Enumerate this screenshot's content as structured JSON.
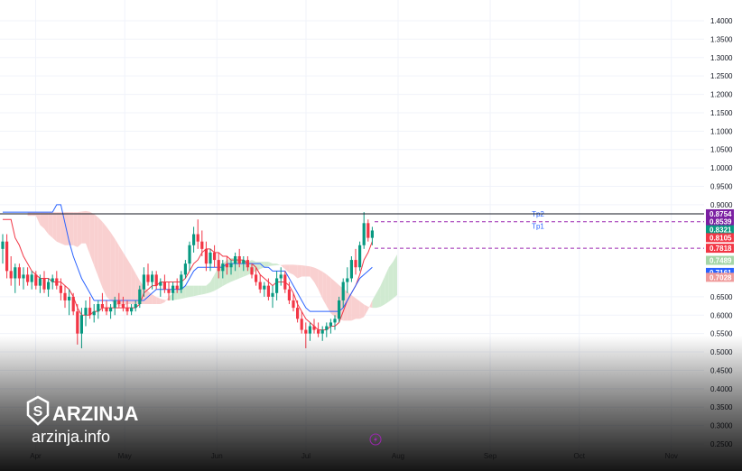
{
  "chart_data": {
    "type": "candlestick",
    "y_axis": {
      "position": "right",
      "ticks": [
        "1.4000",
        "1.3500",
        "1.3000",
        "1.2500",
        "1.2000",
        "1.1500",
        "1.1000",
        "1.0500",
        "1.0000",
        "0.9500",
        "0.9000",
        "0.6500",
        "0.6000",
        "0.5500",
        "0.5000",
        "0.4500",
        "0.4000",
        "0.3500",
        "0.3000",
        "0.2500"
      ],
      "ylim": [
        0.245,
        1.42
      ],
      "scale": "linear"
    },
    "x_axis": {
      "ticks": [
        "Apr",
        "May",
        "Jun",
        "Jul",
        "Aug",
        "Sep",
        "Oct",
        "Nov"
      ]
    },
    "x_range_dates": [
      "2024-03-20",
      "2024-11-12"
    ],
    "price_badges": [
      {
        "value": "0.8754",
        "color": "#7b1fa2"
      },
      {
        "value": "0.8539",
        "color": "#7b1fa2"
      },
      {
        "value": "0.8321",
        "color": "#089981"
      },
      {
        "value": "0.8105",
        "color": "#f23645"
      },
      {
        "value": "0.7818",
        "color": "#f23645"
      },
      {
        "value": "0.7489",
        "color": "#a5d6a7"
      },
      {
        "value": "0.7161",
        "color": "#2962ff"
      },
      {
        "value": "0.7028",
        "color": "#ef9a9a"
      }
    ],
    "levels": [
      {
        "label": "Tp2",
        "value": 0.8754,
        "style": "dashed",
        "color": "#9c27b0"
      },
      {
        "label": "Tp1",
        "value": 0.8539,
        "style": "dashed",
        "color": "#9c27b0"
      },
      {
        "label": "",
        "value": 0.7818,
        "style": "dashed",
        "color": "#9c27b0"
      },
      {
        "label": "",
        "value": 0.8754,
        "style": "solid",
        "color": "#131722"
      }
    ],
    "candles": [
      [
        0.78,
        0.82,
        0.74,
        0.8
      ],
      [
        0.8,
        0.82,
        0.7,
        0.72
      ],
      [
        0.72,
        0.76,
        0.68,
        0.7
      ],
      [
        0.7,
        0.74,
        0.66,
        0.73
      ],
      [
        0.73,
        0.74,
        0.68,
        0.7
      ],
      [
        0.7,
        0.73,
        0.67,
        0.71
      ],
      [
        0.71,
        0.73,
        0.68,
        0.69
      ],
      [
        0.69,
        0.72,
        0.67,
        0.71
      ],
      [
        0.71,
        0.72,
        0.67,
        0.68
      ],
      [
        0.68,
        0.71,
        0.66,
        0.7
      ],
      [
        0.7,
        0.72,
        0.66,
        0.67
      ],
      [
        0.67,
        0.7,
        0.65,
        0.69
      ],
      [
        0.69,
        0.71,
        0.67,
        0.7
      ],
      [
        0.7,
        0.72,
        0.67,
        0.68
      ],
      [
        0.68,
        0.7,
        0.64,
        0.66
      ],
      [
        0.66,
        0.68,
        0.62,
        0.64
      ],
      [
        0.64,
        0.67,
        0.6,
        0.65
      ],
      [
        0.65,
        0.66,
        0.6,
        0.61
      ],
      [
        0.61,
        0.63,
        0.52,
        0.55
      ],
      [
        0.55,
        0.62,
        0.51,
        0.6
      ],
      [
        0.6,
        0.64,
        0.57,
        0.62
      ],
      [
        0.62,
        0.65,
        0.59,
        0.6
      ],
      [
        0.6,
        0.63,
        0.58,
        0.61
      ],
      [
        0.61,
        0.64,
        0.59,
        0.63
      ],
      [
        0.63,
        0.66,
        0.61,
        0.62
      ],
      [
        0.62,
        0.64,
        0.6,
        0.61
      ],
      [
        0.61,
        0.63,
        0.59,
        0.62
      ],
      [
        0.62,
        0.65,
        0.6,
        0.64
      ],
      [
        0.64,
        0.66,
        0.62,
        0.63
      ],
      [
        0.63,
        0.65,
        0.61,
        0.62
      ],
      [
        0.62,
        0.64,
        0.6,
        0.61
      ],
      [
        0.61,
        0.63,
        0.6,
        0.62
      ],
      [
        0.62,
        0.64,
        0.61,
        0.63
      ],
      [
        0.63,
        0.68,
        0.62,
        0.67
      ],
      [
        0.67,
        0.73,
        0.65,
        0.71
      ],
      [
        0.71,
        0.74,
        0.68,
        0.69
      ],
      [
        0.69,
        0.72,
        0.67,
        0.71
      ],
      [
        0.71,
        0.72,
        0.67,
        0.68
      ],
      [
        0.68,
        0.7,
        0.65,
        0.69
      ],
      [
        0.69,
        0.71,
        0.66,
        0.67
      ],
      [
        0.67,
        0.69,
        0.64,
        0.66
      ],
      [
        0.66,
        0.69,
        0.64,
        0.68
      ],
      [
        0.68,
        0.7,
        0.66,
        0.67
      ],
      [
        0.67,
        0.72,
        0.66,
        0.71
      ],
      [
        0.71,
        0.75,
        0.7,
        0.74
      ],
      [
        0.74,
        0.8,
        0.72,
        0.79
      ],
      [
        0.79,
        0.84,
        0.77,
        0.82
      ],
      [
        0.82,
        0.86,
        0.78,
        0.8
      ],
      [
        0.8,
        0.83,
        0.76,
        0.78
      ],
      [
        0.78,
        0.8,
        0.72,
        0.74
      ],
      [
        0.74,
        0.78,
        0.72,
        0.77
      ],
      [
        0.77,
        0.79,
        0.73,
        0.75
      ],
      [
        0.75,
        0.77,
        0.7,
        0.72
      ],
      [
        0.72,
        0.75,
        0.7,
        0.74
      ],
      [
        0.74,
        0.76,
        0.71,
        0.73
      ],
      [
        0.73,
        0.75,
        0.71,
        0.74
      ],
      [
        0.74,
        0.77,
        0.72,
        0.76
      ],
      [
        0.76,
        0.78,
        0.73,
        0.74
      ],
      [
        0.74,
        0.76,
        0.72,
        0.75
      ],
      [
        0.75,
        0.76,
        0.72,
        0.73
      ],
      [
        0.73,
        0.74,
        0.7,
        0.71
      ],
      [
        0.71,
        0.73,
        0.68,
        0.69
      ],
      [
        0.69,
        0.71,
        0.66,
        0.67
      ],
      [
        0.67,
        0.69,
        0.65,
        0.68
      ],
      [
        0.68,
        0.7,
        0.64,
        0.65
      ],
      [
        0.65,
        0.68,
        0.62,
        0.66
      ],
      [
        0.66,
        0.72,
        0.64,
        0.7
      ],
      [
        0.7,
        0.73,
        0.68,
        0.71
      ],
      [
        0.71,
        0.72,
        0.66,
        0.67
      ],
      [
        0.67,
        0.69,
        0.63,
        0.64
      ],
      [
        0.64,
        0.66,
        0.61,
        0.62
      ],
      [
        0.62,
        0.64,
        0.58,
        0.59
      ],
      [
        0.59,
        0.61,
        0.55,
        0.56
      ],
      [
        0.56,
        0.58,
        0.51,
        0.55
      ],
      [
        0.55,
        0.58,
        0.53,
        0.57
      ],
      [
        0.57,
        0.59,
        0.55,
        0.56
      ],
      [
        0.56,
        0.58,
        0.54,
        0.55
      ],
      [
        0.55,
        0.57,
        0.53,
        0.56
      ],
      [
        0.56,
        0.58,
        0.54,
        0.57
      ],
      [
        0.57,
        0.59,
        0.55,
        0.58
      ],
      [
        0.58,
        0.6,
        0.56,
        0.59
      ],
      [
        0.59,
        0.65,
        0.58,
        0.64
      ],
      [
        0.64,
        0.7,
        0.62,
        0.69
      ],
      [
        0.69,
        0.73,
        0.66,
        0.7
      ],
      [
        0.7,
        0.76,
        0.69,
        0.75
      ],
      [
        0.75,
        0.78,
        0.71,
        0.73
      ],
      [
        0.73,
        0.8,
        0.72,
        0.79
      ],
      [
        0.79,
        0.88,
        0.78,
        0.85
      ],
      [
        0.85,
        0.86,
        0.8,
        0.81
      ],
      [
        0.81,
        0.84,
        0.79,
        0.83
      ]
    ],
    "tenkan": [
      0.86,
      0.86,
      0.86,
      0.81,
      0.79,
      0.76,
      0.74,
      0.72,
      0.71,
      0.7,
      0.7,
      0.7,
      0.69,
      0.69,
      0.69,
      0.68,
      0.67,
      0.65,
      0.62,
      0.6,
      0.6,
      0.6,
      0.61,
      0.61,
      0.62,
      0.62,
      0.62,
      0.62,
      0.62,
      0.62,
      0.62,
      0.62,
      0.62,
      0.63,
      0.66,
      0.67,
      0.68,
      0.68,
      0.69,
      0.69,
      0.69,
      0.69,
      0.69,
      0.69,
      0.7,
      0.72,
      0.74,
      0.75,
      0.77,
      0.78,
      0.78,
      0.77,
      0.77,
      0.76,
      0.76,
      0.75,
      0.75,
      0.75,
      0.75,
      0.74,
      0.74,
      0.73,
      0.71,
      0.7,
      0.69,
      0.68,
      0.69,
      0.69,
      0.69,
      0.68,
      0.66,
      0.63,
      0.61,
      0.59,
      0.58,
      0.57,
      0.56,
      0.56,
      0.56,
      0.57,
      0.57,
      0.58,
      0.61,
      0.64,
      0.66,
      0.68,
      0.71,
      0.75,
      0.77,
      0.8
    ],
    "kijun": [
      0.88,
      0.88,
      0.88,
      0.88,
      0.88,
      0.88,
      0.88,
      0.88,
      0.88,
      0.88,
      0.88,
      0.88,
      0.88,
      0.9,
      0.9,
      0.85,
      0.8,
      0.76,
      0.73,
      0.7,
      0.68,
      0.66,
      0.64,
      0.64,
      0.64,
      0.64,
      0.64,
      0.64,
      0.64,
      0.64,
      0.64,
      0.64,
      0.64,
      0.64,
      0.64,
      0.65,
      0.66,
      0.67,
      0.67,
      0.67,
      0.67,
      0.67,
      0.67,
      0.67,
      0.68,
      0.7,
      0.72,
      0.73,
      0.73,
      0.73,
      0.73,
      0.73,
      0.73,
      0.73,
      0.74,
      0.74,
      0.74,
      0.74,
      0.74,
      0.74,
      0.74,
      0.74,
      0.74,
      0.73,
      0.73,
      0.72,
      0.72,
      0.72,
      0.72,
      0.7,
      0.68,
      0.66,
      0.64,
      0.62,
      0.61,
      0.61,
      0.61,
      0.61,
      0.61,
      0.61,
      0.61,
      0.61,
      0.62,
      0.64,
      0.66,
      0.68,
      0.7,
      0.71,
      0.72,
      0.73
    ]
  },
  "watermark": {
    "brand": "ARZINJA",
    "url": "arzinja.info"
  },
  "colors": {
    "up": "#089981",
    "down": "#f23645",
    "tenkan": "#f23645",
    "kijun": "#2962ff",
    "cloud_bear": "#f8c8c8",
    "cloud_bull": "#c8e6c9",
    "grid": "#f0f3fa"
  }
}
